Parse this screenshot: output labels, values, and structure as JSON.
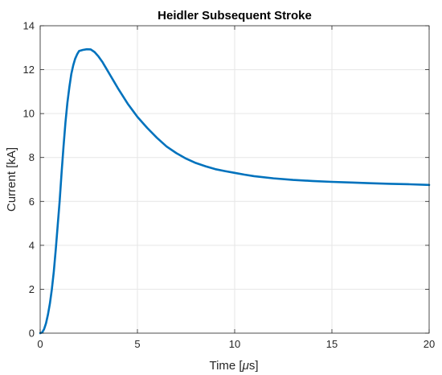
{
  "chart_data": {
    "type": "line",
    "title": "Heidler Subsequent Stroke",
    "xlabel_prefix": "Time [",
    "xlabel_mu": "μ",
    "xlabel_suffix": "s]",
    "ylabel": "Current [kA]",
    "xlim": [
      0,
      20
    ],
    "ylim": [
      0,
      14
    ],
    "xticks": [
      0,
      5,
      10,
      15,
      20
    ],
    "yticks": [
      0,
      2,
      4,
      6,
      8,
      10,
      12,
      14
    ],
    "grid": true,
    "colors": {
      "series": "#0072BD",
      "grid": "#e6e6e6",
      "axis": "#262626"
    },
    "series": [
      {
        "x": [
          0,
          0.1,
          0.2,
          0.3,
          0.4,
          0.5,
          0.6,
          0.7,
          0.8,
          0.9,
          1.0,
          1.1,
          1.2,
          1.3,
          1.4,
          1.5,
          1.6,
          1.7,
          1.8,
          1.9,
          2.0,
          2.2,
          2.4,
          2.6,
          2.8,
          3.0,
          3.2,
          3.4,
          3.6,
          3.8,
          4.0,
          4.25,
          4.5,
          4.75,
          5.0,
          5.5,
          6.0,
          6.5,
          7.0,
          7.5,
          8.0,
          8.5,
          9.0,
          9.5,
          10.0,
          10.5,
          11.0,
          12.0,
          13.0,
          14.0,
          15.0,
          16.0,
          17.0,
          18.0,
          19.0,
          20.0
        ],
        "y": [
          0,
          0.03,
          0.18,
          0.45,
          0.85,
          1.35,
          2.0,
          2.8,
          3.8,
          4.9,
          6.0,
          7.3,
          8.5,
          9.6,
          10.5,
          11.2,
          11.8,
          12.2,
          12.5,
          12.7,
          12.85,
          12.9,
          12.93,
          12.92,
          12.8,
          12.6,
          12.35,
          12.05,
          11.75,
          11.45,
          11.15,
          10.8,
          10.45,
          10.15,
          9.85,
          9.35,
          8.9,
          8.5,
          8.2,
          7.95,
          7.75,
          7.6,
          7.47,
          7.38,
          7.3,
          7.22,
          7.15,
          7.05,
          6.98,
          6.93,
          6.89,
          6.86,
          6.83,
          6.8,
          6.78,
          6.75
        ]
      }
    ]
  }
}
